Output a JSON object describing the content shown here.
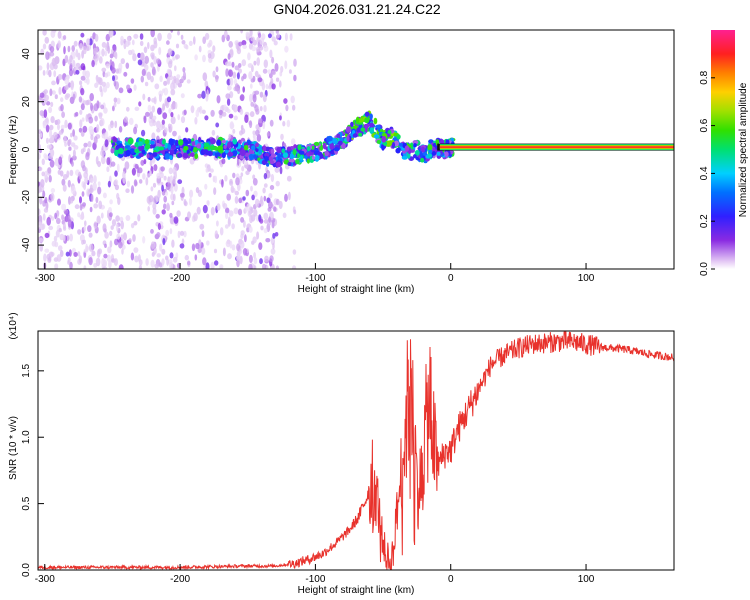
{
  "title": "GN04.2026.031.21.24.C22",
  "colors": {
    "trace": "#e8322c",
    "axes": "#000000",
    "background": "#ffffff"
  },
  "chart_data": [
    {
      "type": "heatmap",
      "xlabel": "Height of straight line (km)",
      "ylabel": "Frequency (Hz)",
      "xlim": [
        -305,
        165
      ],
      "ylim": [
        -50,
        50
      ],
      "xticks": [
        -300,
        -200,
        -100,
        0,
        100
      ],
      "yticks": [
        -40,
        -20,
        0,
        20,
        40
      ],
      "grid": false,
      "colorbar": {
        "label": "Normalized spectral amplitude",
        "range": [
          0,
          1
        ],
        "ticks": [
          "0.0",
          "0.2",
          "0.4",
          "0.6",
          "0.8"
        ],
        "tick_values": [
          0.0,
          0.2,
          0.4,
          0.6,
          0.8
        ],
        "colormap": [
          "#ffffff",
          "#d8b8f0",
          "#8a2be2",
          "#2020ff",
          "#00c8ff",
          "#00e070",
          "#40e000",
          "#c8e000",
          "#ffd000",
          "#ff7000",
          "#ff2020",
          "#ff2080"
        ]
      },
      "ridge": {
        "description": "dominant spectral ridge frequency (Hz) vs height (km)",
        "x": [
          -245,
          -220,
          -200,
          -180,
          -160,
          -150,
          -135,
          -120,
          -110,
          -100,
          -90,
          -80,
          -72,
          -65,
          -60,
          -55,
          -50,
          -45,
          -40,
          -35,
          -30,
          -25,
          -20,
          -15,
          -10,
          -5,
          0,
          20,
          60,
          100,
          165
        ],
        "y": [
          1,
          0,
          0,
          1,
          0,
          0,
          -3,
          -3,
          -2,
          -1,
          1,
          4,
          8,
          10,
          12,
          8,
          4,
          6,
          3,
          0,
          -1,
          0,
          -2,
          0,
          1,
          0,
          1,
          1,
          1,
          1,
          1
        ]
      },
      "noise_region": {
        "x_from": -305,
        "x_to": -130,
        "note": "broadband low-amplitude speckle across full frequency range"
      }
    },
    {
      "type": "line",
      "xlabel": "Height of straight line (km)",
      "ylabel": "SNR (10 * v/v)",
      "y_multiplier": "(x10⁴)",
      "xlim": [
        -305,
        165
      ],
      "ylim": [
        0,
        1.8
      ],
      "xticks": [
        -300,
        -200,
        -100,
        0,
        100
      ],
      "yticks": [
        0.0,
        0.5,
        1.0,
        1.5
      ],
      "grid": false,
      "series": [
        {
          "name": "SNR",
          "x": [
            -305,
            -250,
            -200,
            -150,
            -130,
            -115,
            -105,
            -95,
            -85,
            -75,
            -68,
            -62,
            -58,
            -55,
            -52,
            -48,
            -44,
            -40,
            -36,
            -33,
            -30,
            -27,
            -24,
            -21,
            -18,
            -15,
            -12,
            -9,
            -6,
            -3,
            0,
            5,
            10,
            15,
            20,
            25,
            30,
            40,
            50,
            60,
            70,
            80,
            90,
            100,
            110,
            120,
            130,
            140,
            150,
            165
          ],
          "values": [
            0.02,
            0.02,
            0.02,
            0.03,
            0.03,
            0.05,
            0.08,
            0.12,
            0.2,
            0.3,
            0.4,
            0.55,
            0.72,
            0.6,
            0.35,
            0.1,
            0.05,
            0.4,
            0.8,
            1.1,
            1.45,
            1.0,
            0.55,
            0.8,
            1.1,
            1.3,
            0.9,
            0.8,
            0.85,
            0.9,
            0.9,
            1.05,
            1.15,
            1.25,
            1.35,
            1.45,
            1.55,
            1.62,
            1.67,
            1.7,
            1.71,
            1.72,
            1.72,
            1.7,
            1.68,
            1.67,
            1.66,
            1.64,
            1.62,
            1.6
          ]
        }
      ]
    }
  ]
}
